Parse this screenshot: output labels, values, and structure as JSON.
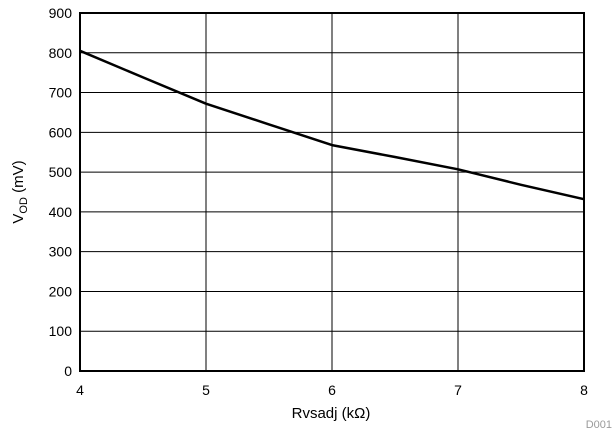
{
  "chart_data": {
    "type": "line",
    "xlabel": "Rvsadj (kΩ)",
    "ylabel_main": "V",
    "ylabel_sub": "OD",
    "ylabel_unit": " (mV)",
    "xlim": [
      4,
      8
    ],
    "ylim": [
      0,
      900
    ],
    "x_ticks": [
      4,
      5,
      6,
      7,
      8
    ],
    "y_ticks": [
      0,
      100,
      200,
      300,
      400,
      500,
      600,
      700,
      800,
      900
    ],
    "grid": true,
    "series": [
      {
        "x": [
          4,
          4.5,
          5,
          5.5,
          6,
          6.5,
          7,
          7.5,
          8
        ],
        "y": [
          805,
          738,
          672,
          620,
          568,
          538,
          507,
          468,
          432
        ]
      }
    ],
    "line_color": "#000000",
    "footer_code": "D001"
  }
}
